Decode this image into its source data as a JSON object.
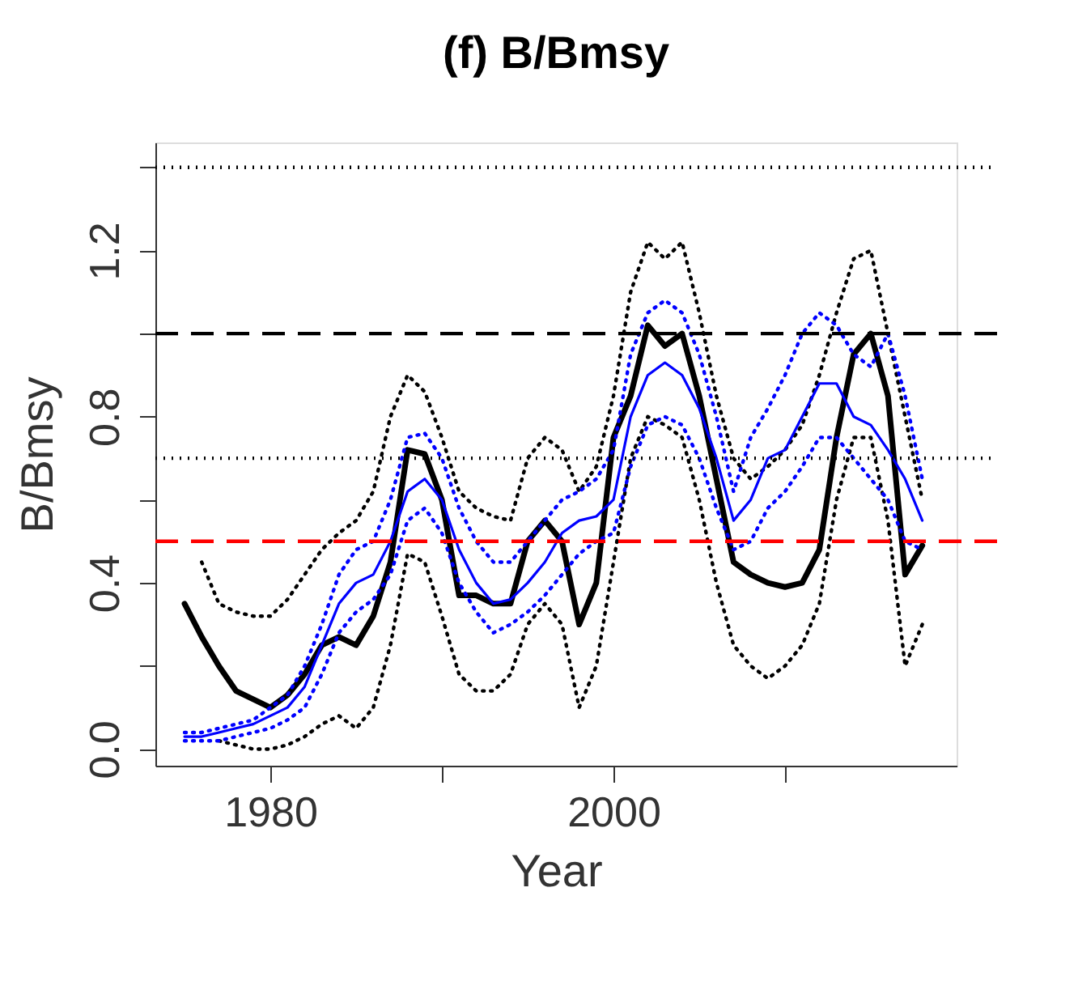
{
  "chart_data": {
    "type": "line",
    "title": "(f) B/Bmsy",
    "xlabel": "Year",
    "ylabel": "B/Bmsy",
    "x": [
      1975,
      1976,
      1977,
      1978,
      1979,
      1980,
      1981,
      1982,
      1983,
      1984,
      1985,
      1986,
      1987,
      1988,
      1989,
      1990,
      1991,
      1992,
      1993,
      1994,
      1995,
      1996,
      1997,
      1998,
      1999,
      2000,
      2001,
      2002,
      2003,
      2004,
      2005,
      2006,
      2007,
      2008,
      2009,
      2010,
      2011,
      2012,
      2013,
      2014,
      2015,
      2016,
      2017,
      2018
    ],
    "series": [
      {
        "color": "#000000",
        "line_style": "solid",
        "values": [
          0.35,
          0.27,
          0.2,
          0.14,
          0.12,
          0.1,
          0.13,
          0.18,
          0.25,
          0.27,
          0.25,
          0.32,
          0.45,
          0.72,
          0.71,
          0.6,
          0.37,
          0.37,
          0.35,
          0.35,
          0.5,
          0.55,
          0.5,
          0.3,
          0.4,
          0.75,
          0.85,
          1.02,
          0.97,
          1.0,
          0.85,
          0.65,
          0.45,
          0.42,
          0.4,
          0.39,
          0.4,
          0.48,
          0.75,
          0.95,
          1.0,
          0.85,
          0.42,
          0.49
        ]
      },
      {
        "color": "#000000",
        "line_style": "dotted",
        "values": [
          null,
          0.45,
          0.35,
          0.33,
          0.32,
          0.32,
          0.36,
          0.42,
          0.48,
          0.52,
          0.55,
          0.62,
          0.8,
          0.9,
          0.86,
          0.75,
          0.62,
          0.58,
          0.56,
          0.55,
          0.7,
          0.75,
          0.72,
          0.62,
          0.68,
          0.85,
          1.1,
          1.22,
          1.18,
          1.22,
          1.05,
          0.85,
          0.7,
          0.65,
          0.68,
          0.72,
          0.78,
          0.9,
          1.05,
          1.18,
          1.2,
          1.0,
          0.8,
          0.6
        ]
      },
      {
        "color": "#000000",
        "line_style": "dotted",
        "values": [
          null,
          null,
          0.02,
          0.01,
          0.0,
          0.0,
          0.01,
          0.03,
          0.06,
          0.08,
          0.05,
          0.1,
          0.25,
          0.47,
          0.45,
          0.32,
          0.18,
          0.14,
          0.14,
          0.18,
          0.3,
          0.35,
          0.3,
          0.1,
          0.2,
          0.45,
          0.7,
          0.8,
          0.78,
          0.75,
          0.6,
          0.4,
          0.25,
          0.2,
          0.17,
          0.2,
          0.25,
          0.35,
          0.6,
          0.75,
          0.75,
          0.55,
          0.2,
          0.3
        ]
      },
      {
        "color": "#0000ff",
        "line_style": "solid",
        "values": [
          0.03,
          0.03,
          0.04,
          0.05,
          0.06,
          0.08,
          0.1,
          0.15,
          0.25,
          0.35,
          0.4,
          0.42,
          0.5,
          0.62,
          0.65,
          0.6,
          0.48,
          0.4,
          0.35,
          0.36,
          0.4,
          0.45,
          0.52,
          0.55,
          0.56,
          0.6,
          0.8,
          0.9,
          0.93,
          0.9,
          0.82,
          0.7,
          0.55,
          0.6,
          0.7,
          0.72,
          0.8,
          0.88,
          0.88,
          0.8,
          0.78,
          0.72,
          0.65,
          0.55
        ]
      },
      {
        "color": "#0000ff",
        "line_style": "dotted",
        "values": [
          0.04,
          0.04,
          0.05,
          0.06,
          0.07,
          0.1,
          0.13,
          0.2,
          0.3,
          0.42,
          0.48,
          0.5,
          0.6,
          0.75,
          0.76,
          0.7,
          0.58,
          0.5,
          0.45,
          0.45,
          0.5,
          0.55,
          0.6,
          0.62,
          0.65,
          0.72,
          0.95,
          1.05,
          1.08,
          1.05,
          0.95,
          0.8,
          0.62,
          0.75,
          0.82,
          0.9,
          1.0,
          1.05,
          1.02,
          0.95,
          0.92,
          1.0,
          0.85,
          0.65
        ]
      },
      {
        "color": "#0000ff",
        "line_style": "dotted",
        "values": [
          0.02,
          0.02,
          0.02,
          0.03,
          0.04,
          0.05,
          0.07,
          0.1,
          0.18,
          0.28,
          0.33,
          0.36,
          0.42,
          0.55,
          0.58,
          0.52,
          0.4,
          0.33,
          0.28,
          0.3,
          0.33,
          0.37,
          0.42,
          0.47,
          0.5,
          0.52,
          0.68,
          0.78,
          0.8,
          0.78,
          0.7,
          0.58,
          0.48,
          0.5,
          0.58,
          0.62,
          0.68,
          0.75,
          0.75,
          0.7,
          0.65,
          0.6,
          0.5,
          0.48
        ]
      }
    ],
    "xlim": [
      1973.3,
      2020
    ],
    "xticks": [
      1980,
      {
        "value": 1990,
        "label": null
      },
      2000,
      {
        "value": 2010,
        "label": null
      }
    ],
    "ylim": [
      -0.04,
      1.46
    ],
    "yticks": [
      {
        "value": 0,
        "label": "0.0"
      },
      {
        "value": 0.2,
        "label": null
      },
      0.4,
      {
        "value": 0.6,
        "label": null
      },
      0.8,
      {
        "value": 1.0,
        "label": null
      },
      1.2,
      {
        "value": 1.4,
        "label": null
      }
    ],
    "ref_lines": [
      {
        "axis": "y",
        "value": 1.4,
        "color": "#000000",
        "line_style": "dotted"
      },
      {
        "axis": "y",
        "value": 1.0,
        "color": "#000000",
        "line_style": "dashed"
      },
      {
        "axis": "y",
        "value": 0.7,
        "color": "#000000",
        "line_style": "dotted"
      },
      {
        "axis": "y",
        "value": 0.5,
        "color": "#ff0000",
        "line_style": "dashed"
      }
    ],
    "grid": false,
    "legend": false
  }
}
